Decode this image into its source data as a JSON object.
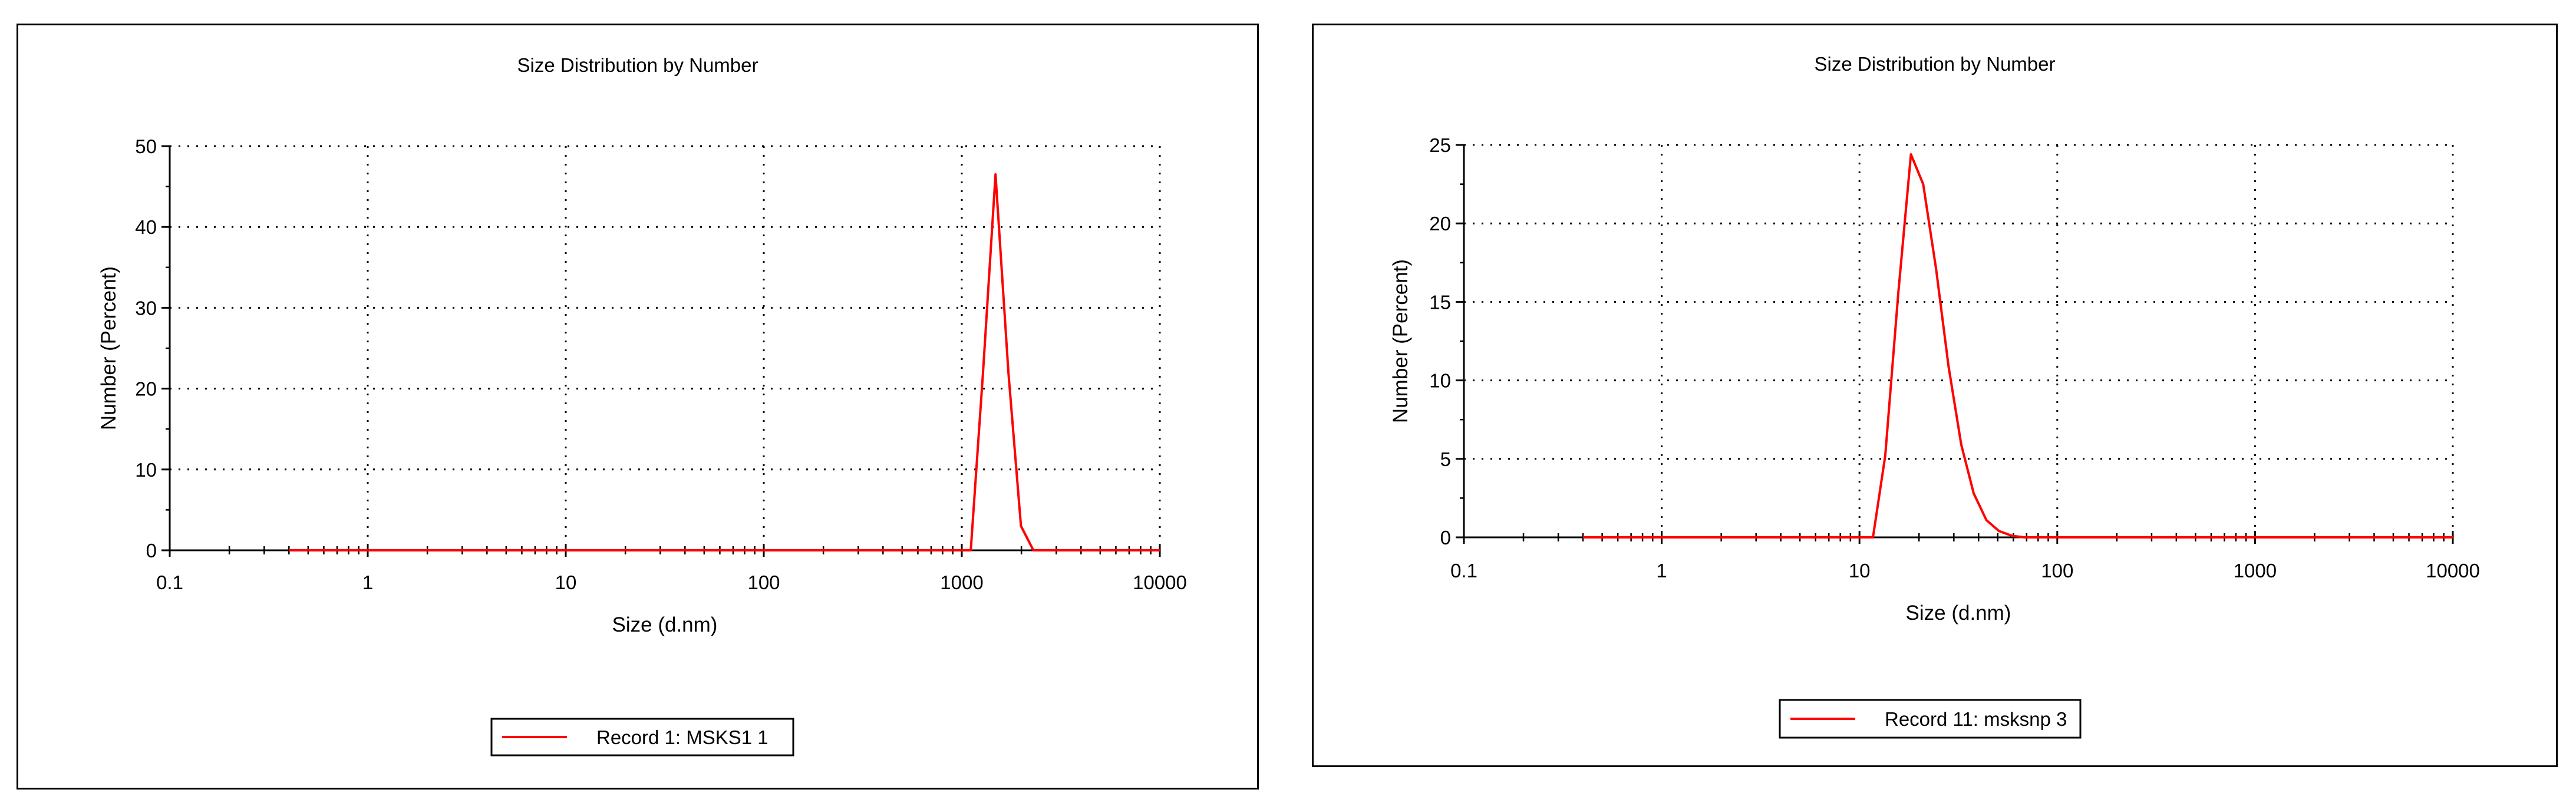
{
  "colors": {
    "series": "#ff0000",
    "axis": "#000000",
    "grid": "#000000",
    "frame": "#000000",
    "background": "#ffffff"
  },
  "chart_data": [
    {
      "type": "line",
      "title": "Size Distribution by Number",
      "xlabel": "Size (d.nm)",
      "ylabel": "Number (Percent)",
      "x_scale": "log",
      "xlim": [
        0.1,
        10000
      ],
      "ylim": [
        0,
        50
      ],
      "x_ticks": [
        0.1,
        1,
        10,
        100,
        1000,
        10000
      ],
      "x_tick_labels": [
        "0.1",
        "1",
        "10",
        "100",
        "1000",
        "10000"
      ],
      "y_ticks": [
        0,
        10,
        20,
        30,
        40,
        50
      ],
      "y_tick_labels": [
        "0",
        "10",
        "20",
        "30",
        "40",
        "50"
      ],
      "grid": true,
      "legend_position": "bottom-center",
      "series": [
        {
          "name": "Record 1: MSKS1 1",
          "color": "#ff0000",
          "x": [
            0.4,
            1,
            10,
            100,
            1000,
            1110,
            1280,
            1480,
            1720,
            1990,
            2300,
            3000,
            10000
          ],
          "y": [
            0,
            0,
            0,
            0,
            0,
            0,
            22,
            46.5,
            22,
            3,
            0,
            0,
            0
          ]
        }
      ]
    },
    {
      "type": "line",
      "title": "Size Distribution by Number",
      "xlabel": "Size (d.nm)",
      "ylabel": "Number (Percent)",
      "x_scale": "log",
      "xlim": [
        0.1,
        10000
      ],
      "ylim": [
        0,
        25
      ],
      "x_ticks": [
        0.1,
        1,
        10,
        100,
        1000,
        10000
      ],
      "x_tick_labels": [
        "0.1",
        "1",
        "10",
        "100",
        "1000",
        "10000"
      ],
      "y_ticks": [
        0,
        5,
        10,
        15,
        20,
        25
      ],
      "y_tick_labels": [
        "0",
        "5",
        "10",
        "15",
        "20",
        "25"
      ],
      "grid": true,
      "legend_position": "bottom-center",
      "series": [
        {
          "name": "Record 11: msksnp 3",
          "color": "#ff0000",
          "x": [
            0.4,
            1,
            10,
            11.7,
            13.5,
            15.7,
            18.2,
            21,
            24.4,
            28.2,
            32.7,
            37.8,
            43.8,
            50.7,
            58.8,
            68,
            78.8,
            100,
            1000,
            10000
          ],
          "y": [
            0,
            0,
            0,
            0,
            5.2,
            15.5,
            24.4,
            22.5,
            17.1,
            10.9,
            5.9,
            2.8,
            1.1,
            0.4,
            0.1,
            0,
            0,
            0,
            0,
            0
          ]
        }
      ]
    }
  ]
}
